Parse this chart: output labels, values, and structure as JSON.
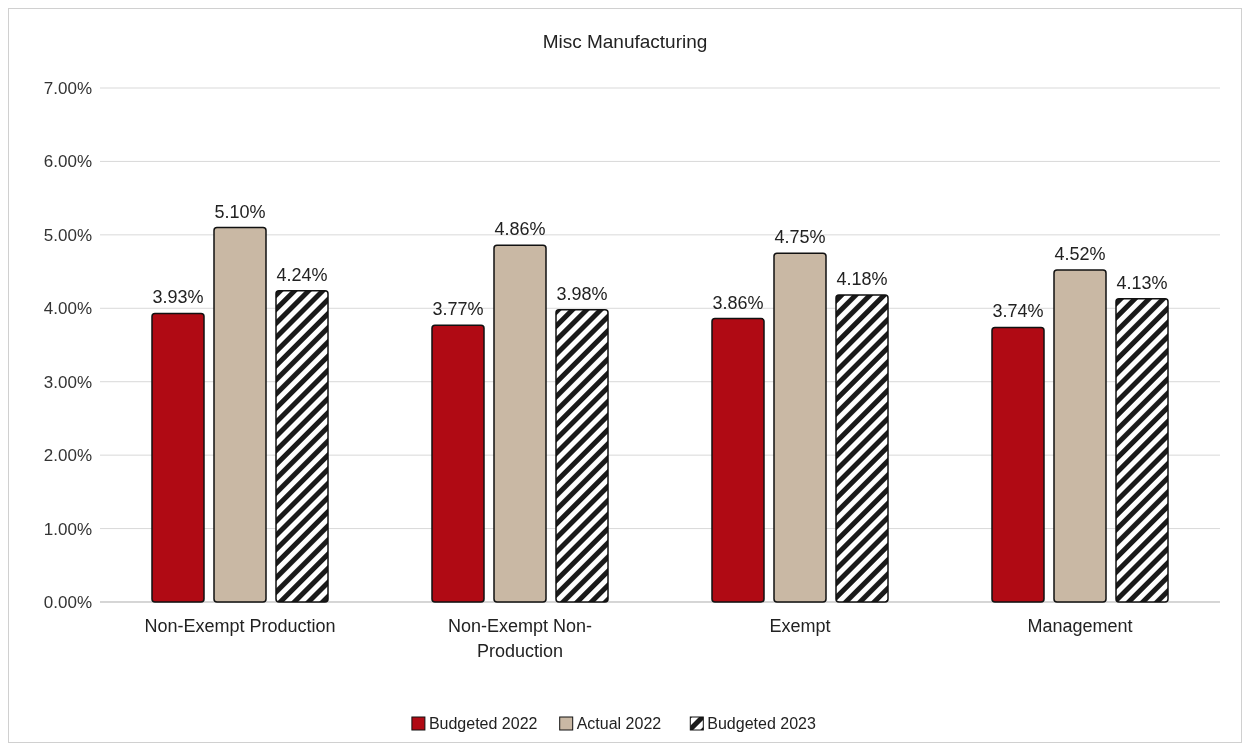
{
  "chart_data": {
    "type": "bar",
    "title": "Misc Manufacturing",
    "categories": [
      "Non-Exempt Production",
      "Non-Exempt Non-Production",
      "Exempt",
      "Management"
    ],
    "series": [
      {
        "name": "Budgeted 2022",
        "color": "#b00a14",
        "values": [
          3.93,
          3.77,
          3.86,
          3.74
        ],
        "value_labels": [
          "3.93%",
          "3.77%",
          "3.86%",
          "3.74%"
        ]
      },
      {
        "name": "Actual 2022",
        "color": "#c9b8a4",
        "values": [
          5.1,
          4.86,
          4.75,
          4.52
        ],
        "value_labels": [
          "5.10%",
          "4.86%",
          "4.75%",
          "4.52%"
        ]
      },
      {
        "name": "Budgeted 2023",
        "color": "#1a1a1a",
        "values": [
          4.24,
          3.98,
          4.18,
          4.13
        ],
        "value_labels": [
          "4.24%",
          "3.98%",
          "4.18%",
          "4.13%"
        ]
      }
    ],
    "ylim": [
      0,
      7
    ],
    "yticks": [
      {
        "value": 0,
        "label": "0.00%"
      },
      {
        "value": 1,
        "label": "1.00%"
      },
      {
        "value": 2,
        "label": "2.00%"
      },
      {
        "value": 3,
        "label": "3.00%"
      },
      {
        "value": 4,
        "label": "4.00%"
      },
      {
        "value": 5,
        "label": "5.00%"
      },
      {
        "value": 6,
        "label": "6.00%"
      },
      {
        "value": 7,
        "label": "7.00%"
      }
    ],
    "grid": "y",
    "legend": "bottom"
  }
}
